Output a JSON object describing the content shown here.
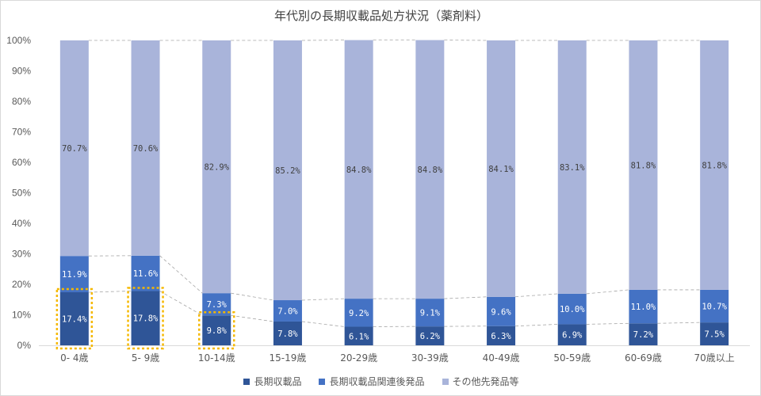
{
  "chart_data": {
    "type": "bar",
    "stacked": true,
    "title": "年代別の長期収載品処方状況（薬剤料）",
    "xlabel": "",
    "ylabel": "",
    "ylim": [
      0,
      100
    ],
    "yticks": [
      "0%",
      "10%",
      "20%",
      "30%",
      "40%",
      "50%",
      "60%",
      "70%",
      "80%",
      "90%",
      "100%"
    ],
    "categories": [
      "0- 4歳",
      "5- 9歳",
      "10-14歳",
      "15-19歳",
      "20-29歳",
      "30-39歳",
      "40-49歳",
      "50-59歳",
      "60-69歳",
      "70歳以上"
    ],
    "series": [
      {
        "name": "長期収載品",
        "color": "#2f5597",
        "values": [
          17.4,
          17.8,
          9.8,
          7.8,
          6.1,
          6.2,
          6.3,
          6.9,
          7.2,
          7.5
        ],
        "labels": [
          "17.4%",
          "17.8%",
          "9.8%",
          "7.8%",
          "6.1%",
          "6.2%",
          "6.3%",
          "6.9%",
          "7.2%",
          "7.5%"
        ]
      },
      {
        "name": "長期収載品関連後発品",
        "color": "#4472c4",
        "values": [
          11.9,
          11.6,
          7.3,
          7.0,
          9.2,
          9.1,
          9.6,
          10.0,
          11.0,
          10.7
        ],
        "labels": [
          "11.9%",
          "11.6%",
          "7.3%",
          "7.0%",
          "9.2%",
          "9.1%",
          "9.6%",
          "10.0%",
          "11.0%",
          "10.7%"
        ]
      },
      {
        "name": "その他先発品等",
        "color": "#a9b4da",
        "values": [
          70.7,
          70.6,
          82.9,
          85.2,
          84.8,
          84.8,
          84.1,
          83.1,
          81.8,
          81.8
        ],
        "labels": [
          "70.7%",
          "70.6%",
          "82.9%",
          "85.2%",
          "84.8%",
          "84.8%",
          "84.1%",
          "83.1%",
          "81.8%",
          "81.8%"
        ]
      }
    ],
    "highlighted_categories": [
      "0- 4歳",
      "5- 9歳",
      "10-14歳"
    ],
    "highlight_color": "#f5b800",
    "series_lines": "dashed",
    "legend_position": "bottom",
    "grid": false
  }
}
